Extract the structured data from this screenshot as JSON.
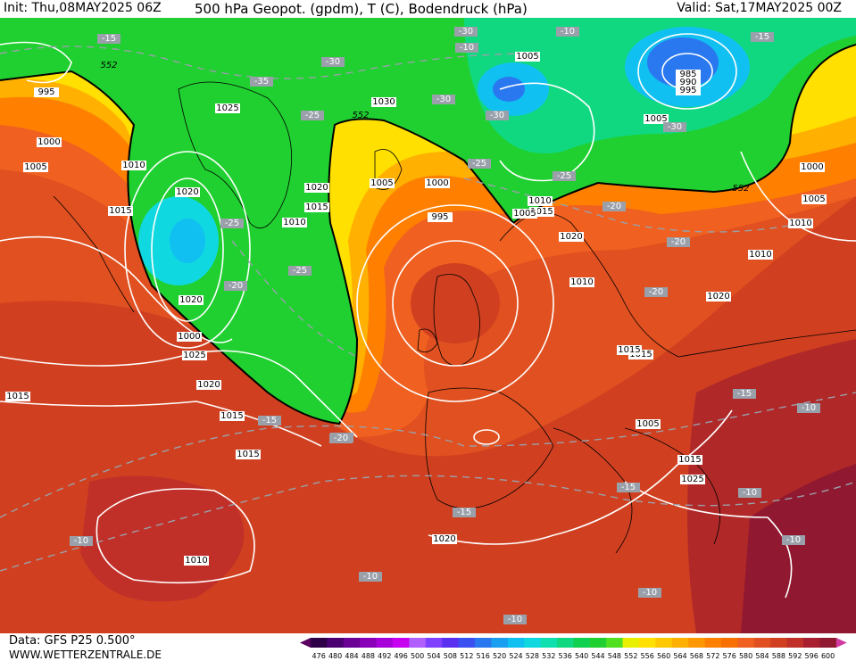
{
  "header": {
    "init": "Init: Thu,08MAY2025 06Z",
    "title": "500 hPa Geopot. (gpdm), T (C), Bodendruck (hPa)",
    "valid": "Valid: Sat,17MAY2025 00Z"
  },
  "footer": {
    "source": "Data: GFS P25 0.500°",
    "site": "WWW.WETTERZENTRALE.DE"
  },
  "legend": {
    "values": [
      "476",
      "480",
      "484",
      "488",
      "492",
      "496",
      "500",
      "504",
      "508",
      "512",
      "516",
      "520",
      "524",
      "528",
      "532",
      "536",
      "540",
      "544",
      "548",
      "552",
      "556",
      "560",
      "564",
      "568",
      "572",
      "576",
      "580",
      "584",
      "588",
      "592",
      "596",
      "600"
    ],
    "colors": [
      "#2e0048",
      "#4b0072",
      "#6a0094",
      "#8a00b8",
      "#a800d8",
      "#c800f0",
      "#b060ff",
      "#8040ff",
      "#5a30f0",
      "#3a50f0",
      "#2a78f0",
      "#1a9ef0",
      "#10c0f0",
      "#10d8e0",
      "#10e0b0",
      "#10d880",
      "#10d050",
      "#20d030",
      "#50e020",
      "#e8f000",
      "#ffe000",
      "#ffc800",
      "#ffb000",
      "#ff9800",
      "#ff8000",
      "#f87000",
      "#f06020",
      "#e05020",
      "#d04020",
      "#c03028",
      "#a82030",
      "#901830"
    ],
    "left_arrow_color": "#5a0060",
    "right_arrow_color": "#d03aa0"
  },
  "map": {
    "geopotential_contour": "552",
    "pressure_labels": [
      "995",
      "1000",
      "1005",
      "1010",
      "1015",
      "1020",
      "1025",
      "1030",
      "1020",
      "1015",
      "1010",
      "1005",
      "1000",
      "995",
      "1020",
      "1015",
      "1010",
      "1005",
      "1000",
      "1020",
      "1025",
      "1020",
      "1015",
      "1015",
      "1010",
      "1005",
      "1015",
      "1025",
      "1020",
      "1010",
      "1015",
      "1015",
      "1020",
      "1000",
      "1005",
      "1010",
      "985",
      "990",
      "995",
      "1005",
      "1005",
      "1010",
      "1015"
    ],
    "temperature_labels": [
      "-15",
      "-30",
      "-35",
      "-30",
      "-25",
      "-30",
      "-30",
      "-30",
      "-15",
      "-25",
      "-20",
      "-25",
      "-20",
      "-25",
      "-20",
      "-20",
      "-25",
      "-20",
      "-15",
      "-20",
      "-15",
      "-10",
      "-15",
      "-10",
      "-15",
      "-10",
      "-10",
      "-10",
      "-10",
      "-10",
      "-10",
      "-10"
    ]
  }
}
